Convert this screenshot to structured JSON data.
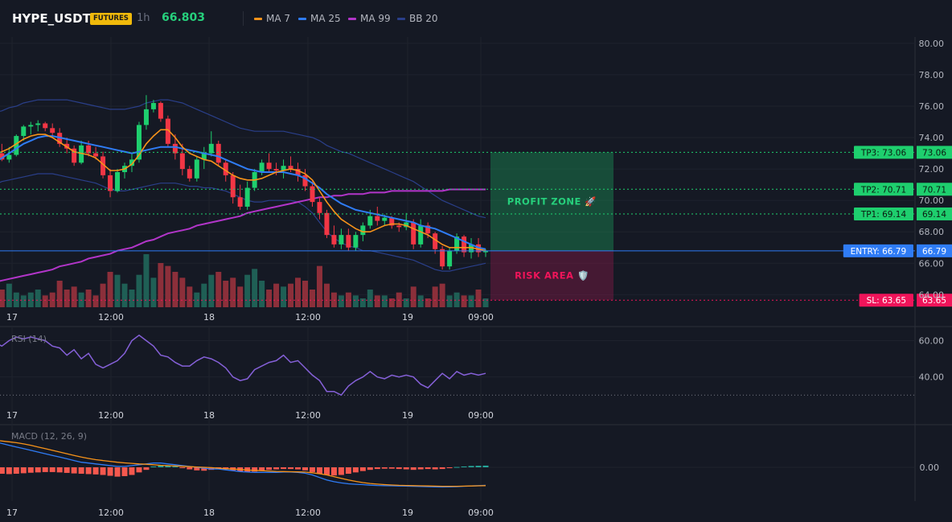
{
  "header": {
    "symbol": "HYPE_USDT",
    "badge": "FUTURES",
    "timeframe": "1h",
    "last_price": "66.803",
    "legend": [
      {
        "label": "MA 7",
        "color": "#f7931a"
      },
      {
        "label": "MA 25",
        "color": "#2f7cf6"
      },
      {
        "label": "MA 99",
        "color": "#b235c9"
      },
      {
        "label": "BB 20",
        "color": "#2a3f8a"
      }
    ]
  },
  "colors": {
    "up": "#26a69a",
    "up_bright": "#1ecf6e",
    "down": "#f23645",
    "volume_up": "#1f5f55",
    "volume_down": "#8c2f3a",
    "rsi": "#8560d8",
    "macd": "#2f7cf6",
    "signal": "#f7931a"
  },
  "chart_data": [
    {
      "type": "candlestick",
      "title": "HYPE_USDT",
      "x_tick_labels": [
        "17",
        "12:00",
        "18",
        "12:00",
        "19",
        "09:00"
      ],
      "ylim": [
        63.2,
        80.4
      ],
      "y_tick_labels": [
        "80.00",
        "78.00",
        "76.00",
        "74.00",
        "72.00",
        "70.00",
        "68.00",
        "66.00",
        "64.00"
      ],
      "candles": [
        [
          72.5,
          73.2,
          72.2,
          73.0
        ],
        [
          73.0,
          73.6,
          72.5,
          72.6
        ],
        [
          72.6,
          73.4,
          72.4,
          72.9
        ],
        [
          72.9,
          74.2,
          72.8,
          74.1
        ],
        [
          74.1,
          74.8,
          73.8,
          74.7
        ],
        [
          74.7,
          75.0,
          74.2,
          74.8
        ],
        [
          74.8,
          75.1,
          74.4,
          74.9
        ],
        [
          74.9,
          75.0,
          74.4,
          74.6
        ],
        [
          74.6,
          74.9,
          74.0,
          74.3
        ],
        [
          74.3,
          74.6,
          73.4,
          73.6
        ],
        [
          73.6,
          74.0,
          73.0,
          73.3
        ],
        [
          73.3,
          73.5,
          72.2,
          72.4
        ],
        [
          72.4,
          73.8,
          72.3,
          73.5
        ],
        [
          73.5,
          73.8,
          72.8,
          73.0
        ],
        [
          73.0,
          73.4,
          72.6,
          72.8
        ],
        [
          72.8,
          73.1,
          71.4,
          71.6
        ],
        [
          71.6,
          72.0,
          70.2,
          70.6
        ],
        [
          70.6,
          72.0,
          70.5,
          71.8
        ],
        [
          71.8,
          72.4,
          71.4,
          72.2
        ],
        [
          72.2,
          73.0,
          71.8,
          72.6
        ],
        [
          72.6,
          75.0,
          72.4,
          74.8
        ],
        [
          74.8,
          76.7,
          74.5,
          75.8
        ],
        [
          75.8,
          76.4,
          75.6,
          76.2
        ],
        [
          76.2,
          76.3,
          75.0,
          75.2
        ],
        [
          75.2,
          75.4,
          73.4,
          73.6
        ],
        [
          73.6,
          74.2,
          72.6,
          73.0
        ],
        [
          73.0,
          73.6,
          71.6,
          72.0
        ],
        [
          72.0,
          72.2,
          71.2,
          71.4
        ],
        [
          71.4,
          72.8,
          71.2,
          72.6
        ],
        [
          72.6,
          73.4,
          72.0,
          73.0
        ],
        [
          73.0,
          74.4,
          72.8,
          73.6
        ],
        [
          73.6,
          73.8,
          72.2,
          72.4
        ],
        [
          72.4,
          72.6,
          71.2,
          71.6
        ],
        [
          71.6,
          71.8,
          69.8,
          70.2
        ],
        [
          70.2,
          71.0,
          69.4,
          69.6
        ],
        [
          69.6,
          71.2,
          69.4,
          70.8
        ],
        [
          70.8,
          72.0,
          70.6,
          71.8
        ],
        [
          71.8,
          72.6,
          71.6,
          72.4
        ],
        [
          72.4,
          73.0,
          71.8,
          72.0
        ],
        [
          72.0,
          72.4,
          71.6,
          71.9
        ],
        [
          71.9,
          72.6,
          71.4,
          72.2
        ],
        [
          72.2,
          72.8,
          71.8,
          72.0
        ],
        [
          72.0,
          72.4,
          71.2,
          71.6
        ],
        [
          71.6,
          72.0,
          70.6,
          70.9
        ],
        [
          70.9,
          71.2,
          69.6,
          69.9
        ],
        [
          69.9,
          70.2,
          68.8,
          69.2
        ],
        [
          69.2,
          69.4,
          67.6,
          67.8
        ],
        [
          67.8,
          68.4,
          67.0,
          67.2
        ],
        [
          67.2,
          68.2,
          66.9,
          67.8
        ],
        [
          67.8,
          68.2,
          66.8,
          67.0
        ],
        [
          67.0,
          68.0,
          66.8,
          67.8
        ],
        [
          67.8,
          68.6,
          67.4,
          68.4
        ],
        [
          68.4,
          69.4,
          68.2,
          69.0
        ],
        [
          69.0,
          69.6,
          68.4,
          68.7
        ],
        [
          68.7,
          69.1,
          68.4,
          68.9
        ],
        [
          68.9,
          69.0,
          68.2,
          68.4
        ],
        [
          68.4,
          68.6,
          68.0,
          68.3
        ],
        [
          68.3,
          69.2,
          68.1,
          68.6
        ],
        [
          68.6,
          68.8,
          66.9,
          67.2
        ],
        [
          67.2,
          68.8,
          67.0,
          68.4
        ],
        [
          68.4,
          68.6,
          67.6,
          67.9
        ],
        [
          67.9,
          68.0,
          66.6,
          66.9
        ],
        [
          66.9,
          67.1,
          65.6,
          65.8
        ],
        [
          65.8,
          67.0,
          65.6,
          66.8
        ],
        [
          66.8,
          67.9,
          66.6,
          67.7
        ],
        [
          67.7,
          67.8,
          66.4,
          66.7
        ],
        [
          66.7,
          67.6,
          66.3,
          67.2
        ],
        [
          67.2,
          67.6,
          66.4,
          66.7
        ],
        [
          66.7,
          66.9,
          66.4,
          66.8
        ]
      ],
      "volume": [
        4,
        6,
        8,
        5,
        4,
        5,
        6,
        4,
        5,
        9,
        6,
        7,
        5,
        6,
        4,
        8,
        12,
        11,
        8,
        6,
        11,
        18,
        10,
        15,
        14,
        12,
        10,
        7,
        5,
        8,
        11,
        12,
        9,
        10,
        7,
        11,
        13,
        9,
        6,
        8,
        7,
        8,
        10,
        9,
        6,
        14,
        8,
        5,
        4,
        5,
        4,
        3,
        6,
        4,
        4,
        3,
        5,
        3,
        7,
        4,
        3,
        7,
        8,
        4,
        5,
        4,
        4,
        6,
        3
      ],
      "ma7": [
        72.9,
        73.1,
        73.3,
        73.6,
        73.9,
        74.1,
        74.2,
        74.2,
        74.0,
        73.7,
        73.4,
        73.1,
        73.0,
        72.9,
        72.7,
        72.3,
        71.9,
        71.9,
        72.0,
        72.3,
        72.9,
        73.6,
        74.1,
        74.5,
        74.5,
        74.0,
        73.4,
        73.0,
        72.8,
        72.6,
        72.5,
        72.2,
        71.9,
        71.6,
        71.4,
        71.3,
        71.3,
        71.4,
        71.6,
        71.8,
        71.9,
        72.0,
        71.9,
        71.7,
        71.3,
        70.6,
        69.9,
        69.3,
        68.8,
        68.5,
        68.2,
        68.0,
        68.0,
        68.2,
        68.4,
        68.5,
        68.5,
        68.4,
        68.2,
        68.0,
        67.8,
        67.5,
        67.2,
        67.0,
        67.0,
        67.0,
        67.0,
        66.9,
        66.8
      ],
      "ma25": [
        72.4,
        72.7,
        73.0,
        73.3,
        73.6,
        73.8,
        74.0,
        74.1,
        74.1,
        74.0,
        73.9,
        73.8,
        73.7,
        73.6,
        73.5,
        73.4,
        73.3,
        73.2,
        73.1,
        73.0,
        73.1,
        73.2,
        73.3,
        73.4,
        73.4,
        73.4,
        73.3,
        73.2,
        73.1,
        73.0,
        72.9,
        72.8,
        72.6,
        72.4,
        72.2,
        72.0,
        71.9,
        71.8,
        71.8,
        71.8,
        71.8,
        71.7,
        71.6,
        71.4,
        71.1,
        70.8,
        70.4,
        70.1,
        69.8,
        69.6,
        69.4,
        69.3,
        69.2,
        69.1,
        69.0,
        68.9,
        68.8,
        68.7,
        68.6,
        68.4,
        68.3,
        68.2,
        68.0,
        67.8,
        67.6,
        67.4,
        67.2,
        67.0,
        66.9
      ],
      "ma99": [
        64.8,
        64.9,
        65.0,
        65.1,
        65.2,
        65.3,
        65.4,
        65.5,
        65.6,
        65.8,
        65.9,
        66.0,
        66.1,
        66.3,
        66.4,
        66.5,
        66.6,
        66.8,
        66.9,
        67.0,
        67.2,
        67.4,
        67.5,
        67.7,
        67.9,
        68.0,
        68.1,
        68.2,
        68.4,
        68.5,
        68.6,
        68.7,
        68.8,
        68.9,
        69.0,
        69.2,
        69.3,
        69.4,
        69.5,
        69.6,
        69.7,
        69.8,
        69.9,
        70.0,
        70.1,
        70.2,
        70.2,
        70.3,
        70.3,
        70.4,
        70.4,
        70.4,
        70.5,
        70.5,
        70.5,
        70.6,
        70.6,
        70.6,
        70.6,
        70.6,
        70.6,
        70.6,
        70.6,
        70.7,
        70.7,
        70.7,
        70.7,
        70.7,
        70.7
      ],
      "bb_upper": [
        75.6,
        75.7,
        75.9,
        76.0,
        76.2,
        76.3,
        76.4,
        76.4,
        76.4,
        76.4,
        76.4,
        76.3,
        76.2,
        76.1,
        76.0,
        75.9,
        75.8,
        75.8,
        75.8,
        75.9,
        76.0,
        76.2,
        76.3,
        76.4,
        76.4,
        76.3,
        76.2,
        76.0,
        75.8,
        75.6,
        75.4,
        75.2,
        75.0,
        74.8,
        74.6,
        74.5,
        74.4,
        74.4,
        74.4,
        74.4,
        74.4,
        74.3,
        74.2,
        74.1,
        74.0,
        73.8,
        73.5,
        73.3,
        73.1,
        73.0,
        72.8,
        72.6,
        72.4,
        72.2,
        72.0,
        71.8,
        71.6,
        71.4,
        71.2,
        70.9,
        70.6,
        70.3,
        70.0,
        69.8,
        69.6,
        69.4,
        69.2,
        69.0,
        68.9
      ],
      "bb_lower": [
        71.0,
        71.2,
        71.3,
        71.4,
        71.5,
        71.6,
        71.7,
        71.7,
        71.7,
        71.6,
        71.5,
        71.4,
        71.3,
        71.2,
        71.1,
        70.9,
        70.7,
        70.6,
        70.6,
        70.7,
        70.8,
        70.9,
        71.0,
        71.1,
        71.1,
        71.1,
        71.0,
        70.9,
        70.9,
        70.8,
        70.8,
        70.7,
        70.6,
        70.4,
        70.2,
        70.0,
        69.9,
        69.9,
        70.0,
        70.0,
        70.0,
        70.0,
        69.9,
        69.6,
        69.2,
        68.6,
        68.0,
        67.6,
        67.3,
        67.1,
        67.0,
        66.8,
        66.8,
        66.7,
        66.6,
        66.5,
        66.4,
        66.3,
        66.2,
        66.0,
        65.8,
        65.6,
        65.5,
        65.5,
        65.6,
        65.7,
        65.8,
        65.9,
        66.0
      ],
      "levels": [
        {
          "label": "TP3: 73.06",
          "price_label": "73.06",
          "value": 73.06,
          "color": "#1ecf6e"
        },
        {
          "label": "TP2: 70.71",
          "price_label": "70.71",
          "value": 70.71,
          "color": "#1ecf6e"
        },
        {
          "label": "TP1: 69.14",
          "price_label": "69.14",
          "value": 69.14,
          "color": "#1ecf6e"
        },
        {
          "label": "ENTRY: 66.79",
          "price_label": "66.79",
          "value": 66.79,
          "color": "#2f7cf6"
        },
        {
          "label": "SL: 63.65",
          "price_label": "63.65",
          "value": 63.65,
          "color": "#f0145a"
        }
      ],
      "zones": {
        "profit": "PROFIT ZONE 🚀",
        "risk": "RISK AREA 🛡️"
      }
    },
    {
      "type": "line",
      "title": "RSI (14)",
      "ylim": [
        27,
        66
      ],
      "y_tick_labels": [
        "60.00",
        "40.00"
      ],
      "x_tick_labels": [
        "17",
        "12:00",
        "18",
        "12:00",
        "19",
        "09:00"
      ],
      "values": [
        59,
        57,
        60,
        62,
        61,
        62,
        61,
        60,
        57,
        56,
        52,
        55,
        50,
        53,
        47,
        45,
        47,
        49,
        53,
        60,
        63,
        60,
        57,
        52,
        51,
        48,
        46,
        46,
        49,
        51,
        50,
        48,
        45,
        40,
        38,
        39,
        44,
        46,
        48,
        49,
        52,
        48,
        49,
        45,
        41,
        38,
        32,
        32,
        30,
        35,
        38,
        40,
        43,
        40,
        39,
        41,
        40,
        41,
        40,
        36,
        34,
        38,
        42,
        39,
        43,
        41,
        42,
        41,
        42
      ],
      "reference_line": 30
    },
    {
      "type": "bar",
      "title": "MACD (12, 26, 9)",
      "y_tick_labels": [
        "0.00"
      ],
      "x_tick_labels": [
        "17",
        "12:00",
        "18",
        "12:00",
        "19",
        "09:00"
      ],
      "histogram": [
        -0.35,
        -0.38,
        -0.4,
        -0.38,
        -0.35,
        -0.32,
        -0.3,
        -0.28,
        -0.28,
        -0.3,
        -0.33,
        -0.36,
        -0.38,
        -0.4,
        -0.42,
        -0.45,
        -0.5,
        -0.55,
        -0.52,
        -0.45,
        -0.3,
        -0.15,
        0.05,
        0.12,
        0.1,
        0.05,
        -0.05,
        -0.12,
        -0.18,
        -0.2,
        -0.15,
        -0.1,
        -0.12,
        -0.18,
        -0.25,
        -0.28,
        -0.25,
        -0.2,
        -0.15,
        -0.12,
        -0.1,
        -0.1,
        -0.12,
        -0.18,
        -0.28,
        -0.38,
        -0.45,
        -0.48,
        -0.45,
        -0.38,
        -0.3,
        -0.22,
        -0.15,
        -0.1,
        -0.08,
        -0.08,
        -0.1,
        -0.12,
        -0.15,
        -0.12,
        -0.1,
        -0.12,
        -0.1,
        -0.05,
        0.02,
        0.05,
        0.08,
        0.09,
        0.1
      ],
      "macd": [
        1.5,
        1.4,
        1.3,
        1.2,
        1.1,
        1.0,
        0.9,
        0.8,
        0.7,
        0.6,
        0.5,
        0.4,
        0.3,
        0.25,
        0.2,
        0.15,
        0.1,
        0.05,
        0.05,
        0.1,
        0.15,
        0.2,
        0.25,
        0.25,
        0.2,
        0.15,
        0.1,
        0.05,
        0.0,
        -0.05,
        -0.1,
        -0.1,
        -0.15,
        -0.2,
        -0.25,
        -0.28,
        -0.3,
        -0.3,
        -0.3,
        -0.3,
        -0.28,
        -0.28,
        -0.3,
        -0.35,
        -0.45,
        -0.6,
        -0.75,
        -0.85,
        -0.92,
        -0.97,
        -1.0,
        -1.02,
        -1.05,
        -1.07,
        -1.08,
        -1.09,
        -1.1,
        -1.11,
        -1.12,
        -1.13,
        -1.14,
        -1.15,
        -1.16,
        -1.15,
        -1.14,
        -1.12,
        -1.1,
        -1.08,
        -1.06
      ],
      "signal": [
        1.6,
        1.55,
        1.5,
        1.45,
        1.38,
        1.3,
        1.2,
        1.1,
        1.0,
        0.9,
        0.8,
        0.7,
        0.6,
        0.52,
        0.45,
        0.4,
        0.35,
        0.3,
        0.26,
        0.23,
        0.2,
        0.18,
        0.15,
        0.12,
        0.1,
        0.08,
        0.06,
        0.04,
        0.02,
        0.0,
        -0.02,
        -0.05,
        -0.08,
        -0.1,
        -0.13,
        -0.16,
        -0.18,
        -0.2,
        -0.22,
        -0.24,
        -0.25,
        -0.26,
        -0.27,
        -0.28,
        -0.32,
        -0.38,
        -0.45,
        -0.55,
        -0.65,
        -0.75,
        -0.83,
        -0.9,
        -0.95,
        -0.99,
        -1.02,
        -1.04,
        -1.06,
        -1.07,
        -1.08,
        -1.09,
        -1.1,
        -1.11,
        -1.12,
        -1.12,
        -1.12,
        -1.11,
        -1.1,
        -1.09,
        -1.08
      ],
      "ylim": [
        -1.8,
        1.8
      ]
    }
  ]
}
